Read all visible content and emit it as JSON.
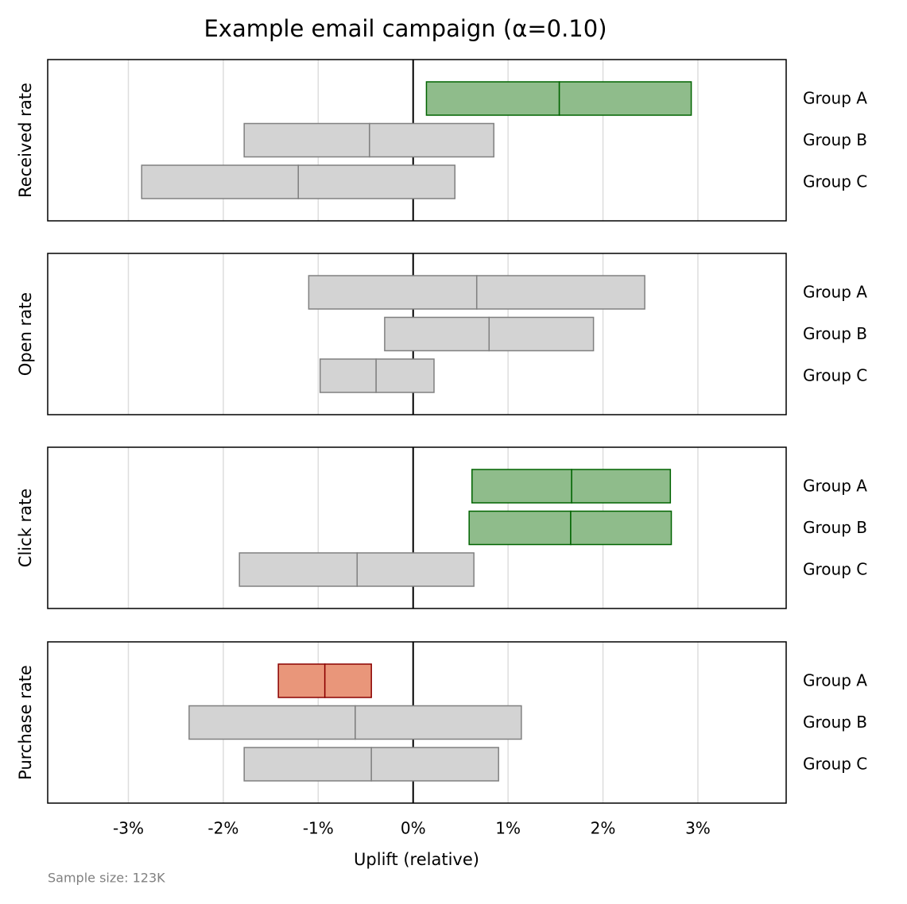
{
  "figure": {
    "title": "Example email campaign (α=0.10)",
    "xlabel": "Uplift (relative)",
    "note": "Sample size: 123K",
    "xlim": [
      -3.85,
      3.93
    ],
    "xticks": [
      {
        "value": -3,
        "label": "-3%"
      },
      {
        "value": -2,
        "label": "-2%"
      },
      {
        "value": -1,
        "label": "-1%"
      },
      {
        "value": 0,
        "label": "0%"
      },
      {
        "value": 1,
        "label": "1%"
      },
      {
        "value": 2,
        "label": "2%"
      },
      {
        "value": 3,
        "label": "3%"
      }
    ],
    "refline": 0,
    "grid": true
  },
  "chart_data": [
    {
      "type": "interval",
      "ylabel": "Received rate",
      "categories": [
        "Group A",
        "Group B",
        "Group C"
      ],
      "low": [
        0.14,
        -1.78,
        -2.86
      ],
      "mid": [
        1.54,
        -0.46,
        -1.21
      ],
      "high": [
        2.93,
        0.85,
        0.44
      ],
      "colors": [
        "#8fbc8b",
        "#d3d3d3",
        "#d3d3d3"
      ],
      "edgecolors": [
        "#006400",
        "#808080",
        "#808080"
      ]
    },
    {
      "type": "interval",
      "ylabel": "Open rate",
      "categories": [
        "Group A",
        "Group B",
        "Group C"
      ],
      "low": [
        -1.1,
        -0.3,
        -0.98
      ],
      "mid": [
        0.67,
        0.8,
        -0.39
      ],
      "high": [
        2.44,
        1.9,
        0.22
      ],
      "colors": [
        "#d3d3d3",
        "#d3d3d3",
        "#d3d3d3"
      ],
      "edgecolors": [
        "#808080",
        "#808080",
        "#808080"
      ]
    },
    {
      "type": "interval",
      "ylabel": "Click rate",
      "categories": [
        "Group A",
        "Group B",
        "Group C"
      ],
      "low": [
        0.62,
        0.59,
        -1.83
      ],
      "mid": [
        1.67,
        1.66,
        -0.59
      ],
      "high": [
        2.71,
        2.72,
        0.64
      ],
      "colors": [
        "#8fbc8b",
        "#8fbc8b",
        "#d3d3d3"
      ],
      "edgecolors": [
        "#006400",
        "#006400",
        "#808080"
      ]
    },
    {
      "type": "interval",
      "ylabel": "Purchase rate",
      "categories": [
        "Group A",
        "Group B",
        "Group C"
      ],
      "low": [
        -1.42,
        -2.36,
        -1.78
      ],
      "mid": [
        -0.93,
        -0.61,
        -0.44
      ],
      "high": [
        -0.44,
        1.14,
        0.9
      ],
      "colors": [
        "#e9967a",
        "#d3d3d3",
        "#d3d3d3"
      ],
      "edgecolors": [
        "#8b0000",
        "#808080",
        "#808080"
      ]
    }
  ]
}
